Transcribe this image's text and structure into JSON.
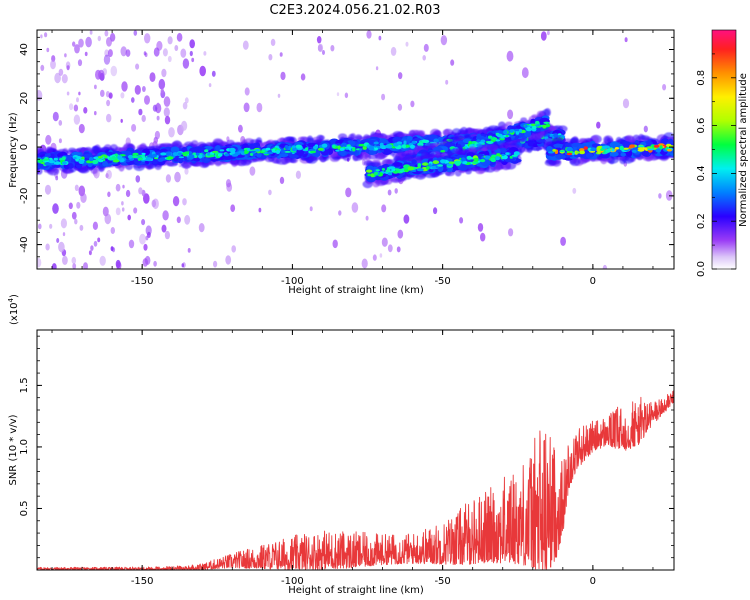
{
  "title": "C2E3.2024.056.21.02.R03",
  "chart_data": [
    {
      "type": "heatmap",
      "xlabel": "Height of straight line (km)",
      "ylabel": "Frequency (Hz)",
      "xlim": [
        -185,
        27
      ],
      "ylim": [
        -50,
        48
      ],
      "xticks": [
        -150,
        -100,
        -50,
        0
      ],
      "yticks": [
        -40,
        -20,
        0,
        20,
        40
      ],
      "colorbar": {
        "label": "Normalized spectral amplitude",
        "range": [
          0,
          1
        ],
        "ticks": [
          0.0,
          0.2,
          0.4,
          0.6,
          0.8
        ],
        "ticklabels": [
          "0.0",
          "0.2",
          "0.4",
          "0.6",
          "0.8"
        ]
      },
      "features": [
        {
          "name": "main-band",
          "x": [
            -185,
            -10
          ],
          "y_start": -6,
          "y_end": 4,
          "peak_amplitude": 0.55
        },
        {
          "name": "upper-branch",
          "x": [
            -65,
            -15
          ],
          "y_start": -8,
          "y_end": 10,
          "peak_amplitude": 0.55
        },
        {
          "name": "lower-branch",
          "x": [
            -75,
            -25
          ],
          "y_start": -11,
          "y_end": -3,
          "peak_amplitude": 0.6
        },
        {
          "name": "right-band",
          "x": [
            -15,
            27
          ],
          "y_start": -2,
          "y_end": 0,
          "peak_amplitude": 0.95
        }
      ]
    },
    {
      "type": "line",
      "xlabel": "Height of straight line (km)",
      "ylabel": "SNR (10 * v/v)",
      "multiplier_label": "(x10",
      "multiplier_exp": "4",
      "multiplier_close": ")",
      "xlim": [
        -185,
        27
      ],
      "ylim": [
        0,
        1.95
      ],
      "xticks": [
        -150,
        -100,
        -50,
        0
      ],
      "yticks": [
        0.5,
        1.0,
        1.5
      ],
      "yticklabels": [
        "0.5",
        "1.0",
        "1.5"
      ],
      "color": "#e8383a",
      "envelope": {
        "x": [
          -185,
          -160,
          -140,
          -130,
          -120,
          -110,
          -100,
          -90,
          -80,
          -70,
          -60,
          -50,
          -45,
          -40,
          -35,
          -30,
          -25,
          -20,
          -17,
          -15,
          -12,
          -10,
          -8,
          -5,
          0,
          5,
          10,
          15,
          20,
          25,
          27
        ],
        "base": [
          0.01,
          0.01,
          0.01,
          0.02,
          0.06,
          0.08,
          0.1,
          0.12,
          0.12,
          0.13,
          0.14,
          0.17,
          0.2,
          0.24,
          0.27,
          0.3,
          0.33,
          0.37,
          0.38,
          0.4,
          0.42,
          0.5,
          0.8,
          0.95,
          1.05,
          1.1,
          1.1,
          1.15,
          1.25,
          1.35,
          1.4
        ],
        "amp": [
          0.02,
          0.02,
          0.03,
          0.05,
          0.12,
          0.2,
          0.28,
          0.32,
          0.3,
          0.25,
          0.25,
          0.35,
          0.45,
          0.55,
          0.6,
          0.7,
          0.8,
          1.0,
          1.45,
          1.2,
          0.9,
          0.6,
          0.4,
          0.35,
          0.25,
          0.25,
          0.4,
          0.4,
          0.2,
          0.12,
          0.1
        ]
      }
    }
  ]
}
